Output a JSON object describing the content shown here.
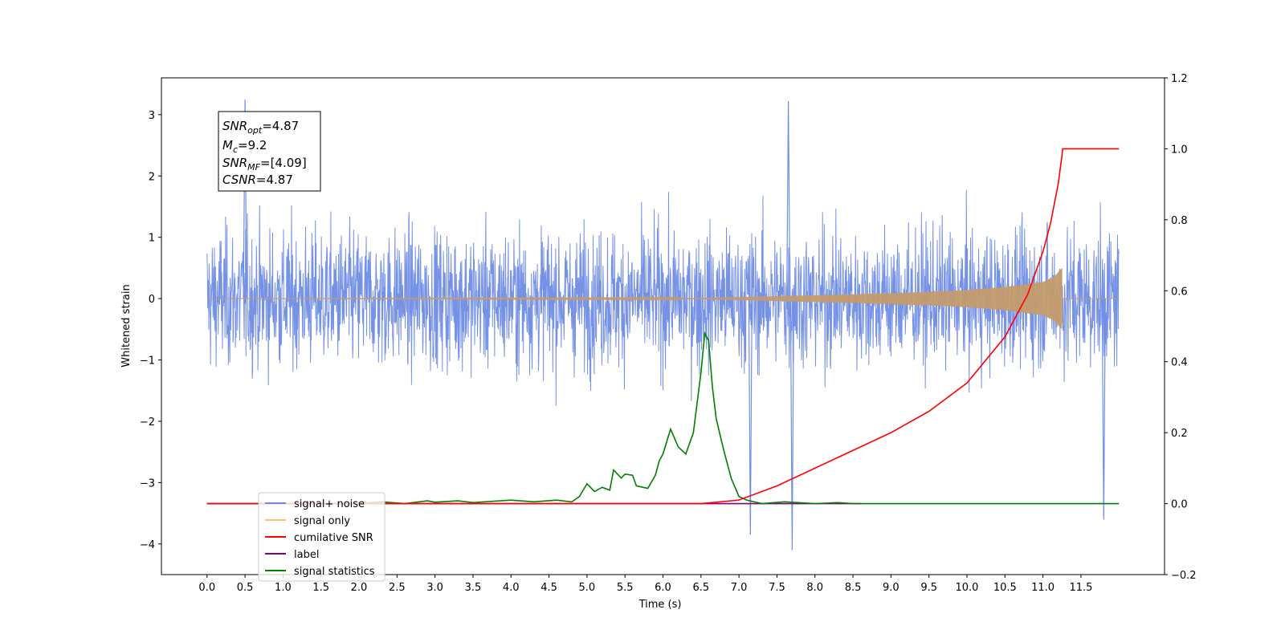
{
  "chart_data": {
    "type": "line",
    "xlabel": "Time (s)",
    "ylabel_left": "Whitened strain",
    "ylabel_right": "",
    "xlim": [
      -0.6,
      12.6
    ],
    "ylim_left": [
      -4.5,
      3.6
    ],
    "ylim_right": [
      -0.2,
      1.2
    ],
    "x_ticks": [
      "0.0",
      "0.5",
      "1.0",
      "1.5",
      "2.0",
      "2.5",
      "3.0",
      "3.5",
      "4.0",
      "4.5",
      "5.0",
      "5.5",
      "6.0",
      "6.5",
      "7.0",
      "7.5",
      "8.0",
      "8.5",
      "9.0",
      "9.5",
      "10.0",
      "10.5",
      "11.0",
      "11.5"
    ],
    "y_ticks_left": [
      "3",
      "2",
      "1",
      "0",
      "−1",
      "−2",
      "−3",
      "−4"
    ],
    "y_ticks_right": [
      "1.2",
      "1.0",
      "0.8",
      "0.6",
      "0.4",
      "0.2",
      "0.0",
      "−0.2"
    ],
    "grid": false,
    "legend_placement": "lower-left",
    "series": [
      {
        "name": "signal+ noise",
        "axis": "left",
        "color": "#6f8ce6",
        "x_range": [
          0.0,
          12.0
        ],
        "typical_range": [
          -1.6,
          1.6
        ],
        "max": 3.25,
        "min": -4.1,
        "note_points": [
          [
            0.5,
            3.25
          ],
          [
            7.65,
            3.22
          ],
          [
            7.7,
            -4.1
          ],
          [
            11.8,
            -3.6
          ],
          [
            7.15,
            -3.85
          ]
        ]
      },
      {
        "name": "signal only",
        "axis": "left",
        "color": "#c49b6c",
        "x_range": [
          0.0,
          12.0
        ],
        "envelope": [
          [
            0.0,
            0.0
          ],
          [
            6.5,
            0.01
          ],
          [
            7.5,
            0.04
          ],
          [
            8.5,
            0.07
          ],
          [
            9.5,
            0.11
          ],
          [
            10.0,
            0.14
          ],
          [
            10.5,
            0.19
          ],
          [
            11.0,
            0.27
          ],
          [
            11.15,
            0.36
          ],
          [
            11.25,
            0.5
          ],
          [
            11.26,
            0.0
          ],
          [
            12.0,
            0.0
          ]
        ]
      },
      {
        "name": "cumilative SNR",
        "axis": "right",
        "color": "#ff0000",
        "x": [
          0.0,
          6.5,
          7.0,
          7.5,
          8.0,
          8.5,
          9.0,
          9.5,
          10.0,
          10.5,
          10.8,
          11.0,
          11.1,
          11.2,
          11.25,
          11.26,
          12.0
        ],
        "values": [
          0.0,
          0.0,
          0.01,
          0.05,
          0.1,
          0.15,
          0.2,
          0.26,
          0.34,
          0.47,
          0.59,
          0.71,
          0.79,
          0.9,
          0.98,
          1.0,
          1.0
        ]
      },
      {
        "name": "label",
        "axis": "right",
        "color": "#800080",
        "x": [
          0.0,
          8.6
        ],
        "values": [
          0.0,
          0.0
        ]
      },
      {
        "name": "signal statistics",
        "axis": "right",
        "color": "#008000",
        "x": [
          0.0,
          2.0,
          2.3,
          2.6,
          2.9,
          3.0,
          3.3,
          3.5,
          4.0,
          4.3,
          4.6,
          4.8,
          4.9,
          5.0,
          5.1,
          5.2,
          5.3,
          5.35,
          5.45,
          5.5,
          5.6,
          5.65,
          5.8,
          5.9,
          5.95,
          6.0,
          6.1,
          6.2,
          6.3,
          6.4,
          6.5,
          6.55,
          6.6,
          6.65,
          6.7,
          6.8,
          6.9,
          7.0,
          7.1,
          7.3,
          7.6,
          8.0,
          8.3,
          8.5,
          8.6,
          12.0
        ],
        "values": [
          0.0,
          0.0,
          0.005,
          0.0,
          0.008,
          0.004,
          0.008,
          0.003,
          0.01,
          0.005,
          0.01,
          0.005,
          0.02,
          0.056,
          0.034,
          0.046,
          0.038,
          0.095,
          0.072,
          0.083,
          0.08,
          0.05,
          0.043,
          0.08,
          0.12,
          0.14,
          0.21,
          0.16,
          0.14,
          0.2,
          0.37,
          0.48,
          0.46,
          0.33,
          0.24,
          0.15,
          0.07,
          0.02,
          0.01,
          0.0,
          0.005,
          0.0,
          0.003,
          0.0,
          0.0,
          0.0
        ]
      }
    ],
    "hidden_legend_entry": "signal only"
  },
  "info_box": {
    "snr_opt": {
      "base": "SNR",
      "sub": "opt",
      "value": "=4.87"
    },
    "mc": {
      "base": "M",
      "sub": "c",
      "value": "=9.2"
    },
    "snr_mf": {
      "base": "SNR",
      "sub": "MF",
      "value": "=[4.09]"
    },
    "csnr": {
      "base": "CSNR",
      "sub": "",
      "value": "=4.87"
    }
  },
  "legend": [
    {
      "label": "signal+ noise",
      "color": "#6f8ce6"
    },
    {
      "label": "signal only",
      "color": "#ffc46a"
    },
    {
      "label": "cumilative SNR",
      "color": "#ff0000"
    },
    {
      "label": "label",
      "color": "#800080"
    },
    {
      "label": "signal statistics",
      "color": "#008000"
    }
  ],
  "colors": {
    "noise": "#6f8ce6",
    "signal": "#c49b6c",
    "cumsnr": "#ff0000",
    "label": "#800080",
    "stats": "#008000"
  }
}
